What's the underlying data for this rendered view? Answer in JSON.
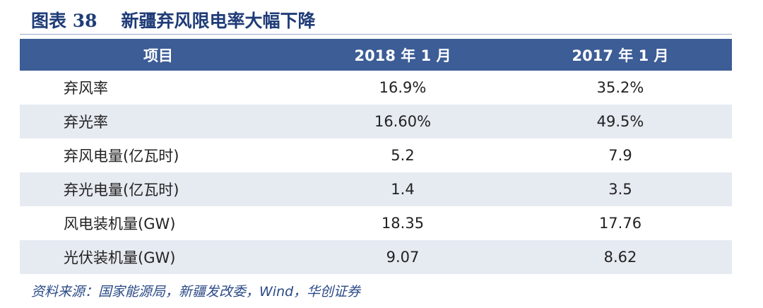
{
  "header": {
    "label": "图表 38",
    "title": "新疆弃风限电率大幅下降"
  },
  "table": {
    "columns": [
      "项目",
      "2018 年 1 月",
      "2017 年 1 月"
    ],
    "rows": [
      [
        "弃风率",
        "16.9%",
        "35.2%"
      ],
      [
        "弃光率",
        "16.60%",
        "49.5%"
      ],
      [
        "弃风电量(亿瓦时)",
        "5.2",
        "7.9"
      ],
      [
        "弃光电量(亿瓦时)",
        "1.4",
        "3.5"
      ],
      [
        "风电装机量(GW)",
        "18.35",
        "17.76"
      ],
      [
        "光伏装机量(GW)",
        "9.07",
        "8.62"
      ]
    ]
  },
  "footer": {
    "source": "资料来源：国家能源局，新疆发改委，Wind，华创证券"
  }
}
